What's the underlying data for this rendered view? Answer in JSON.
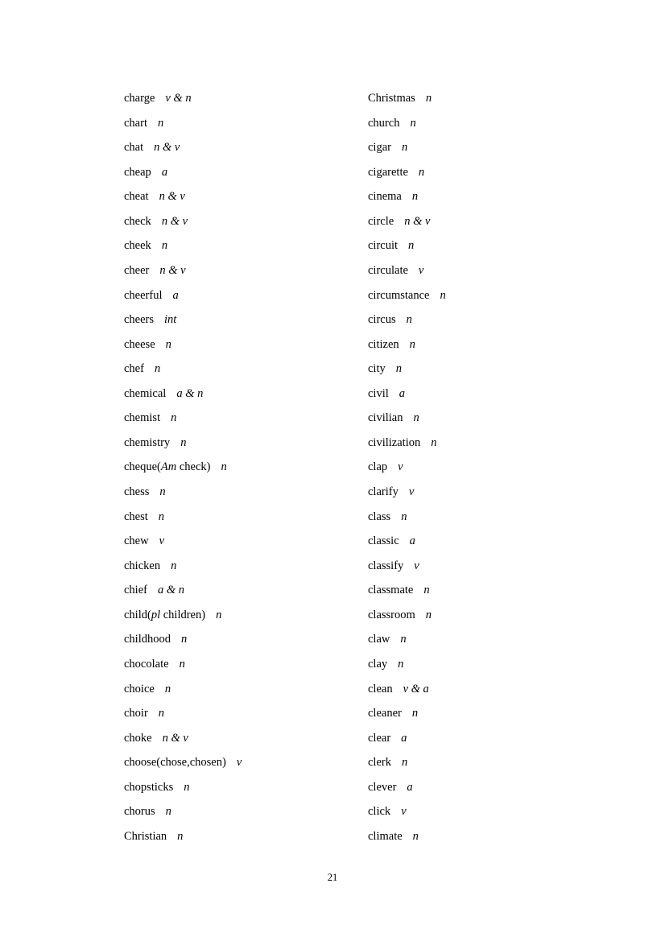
{
  "page": {
    "number": "21"
  },
  "columns": {
    "left": [
      {
        "word": "charge",
        "pos": "v & n"
      },
      {
        "word": "chart",
        "pos": "n"
      },
      {
        "word": "chat",
        "pos": "n & v"
      },
      {
        "word": "cheap",
        "pos": "a"
      },
      {
        "word": "cheat",
        "pos": "n & v"
      },
      {
        "word": "check",
        "pos": "n & v"
      },
      {
        "word": "cheek",
        "pos": "n"
      },
      {
        "word": "cheer",
        "pos": "n & v"
      },
      {
        "word": "cheerful",
        "pos": "a"
      },
      {
        "word": "cheers",
        "pos": "int"
      },
      {
        "word": "cheese",
        "pos": "n"
      },
      {
        "word": "chef",
        "pos": "n"
      },
      {
        "word": "chemical",
        "pos": "a & n"
      },
      {
        "word": "chemist",
        "pos": "n"
      },
      {
        "word": "chemistry",
        "pos": "n"
      },
      {
        "word": "cheque(",
        "it": "Am",
        "rest": " check)",
        "pos": "n"
      },
      {
        "word": "chess",
        "pos": "n"
      },
      {
        "word": "chest",
        "pos": "n"
      },
      {
        "word": "chew",
        "pos": "v"
      },
      {
        "word": "chicken",
        "pos": "n"
      },
      {
        "word": "chief",
        "pos": "a & n"
      },
      {
        "word": "child(",
        "it": "pl",
        "rest": " children)",
        "pos": "n"
      },
      {
        "word": "childhood",
        "pos": "n"
      },
      {
        "word": "chocolate",
        "pos": "n"
      },
      {
        "word": "choice",
        "pos": "n"
      },
      {
        "word": "choir",
        "pos": "n"
      },
      {
        "word": "choke",
        "pos": "n & v"
      },
      {
        "word": "choose(chose,chosen)",
        "pos": "v"
      },
      {
        "word": "chopsticks",
        "pos": "n"
      },
      {
        "word": "chorus",
        "pos": "n"
      },
      {
        "word": "Christian",
        "pos": "n"
      }
    ],
    "right": [
      {
        "word": "Christmas",
        "pos": "n"
      },
      {
        "word": "church",
        "pos": "n"
      },
      {
        "word": "cigar",
        "pos": "n"
      },
      {
        "word": "cigarette",
        "pos": "n"
      },
      {
        "word": "cinema",
        "pos": "n"
      },
      {
        "word": "circle",
        "pos": "n & v"
      },
      {
        "word": "circuit",
        "pos": "n"
      },
      {
        "word": "circulate",
        "pos": "v"
      },
      {
        "word": "circumstance",
        "pos": "n"
      },
      {
        "word": "circus",
        "pos": "n"
      },
      {
        "word": "citizen",
        "pos": "n"
      },
      {
        "word": "city",
        "pos": "n"
      },
      {
        "word": "civil",
        "pos": "a"
      },
      {
        "word": "civilian",
        "pos": "n"
      },
      {
        "word": "civilization",
        "pos": "n"
      },
      {
        "word": "clap",
        "pos": "v"
      },
      {
        "word": "clarify",
        "pos": "v"
      },
      {
        "word": "class",
        "pos": "n"
      },
      {
        "word": "classic",
        "pos": "a"
      },
      {
        "word": "classify",
        "pos": "v"
      },
      {
        "word": "classmate",
        "pos": "n"
      },
      {
        "word": "classroom",
        "pos": "n"
      },
      {
        "word": "claw",
        "pos": "n"
      },
      {
        "word": "clay",
        "pos": "n"
      },
      {
        "word": "clean",
        "pos": "v & a"
      },
      {
        "word": "cleaner",
        "pos": "n"
      },
      {
        "word": "clear",
        "pos": "a"
      },
      {
        "word": "clerk",
        "pos": "n"
      },
      {
        "word": "clever",
        "pos": "a"
      },
      {
        "word": "click",
        "pos": "v"
      },
      {
        "word": "climate",
        "pos": "n"
      }
    ]
  }
}
